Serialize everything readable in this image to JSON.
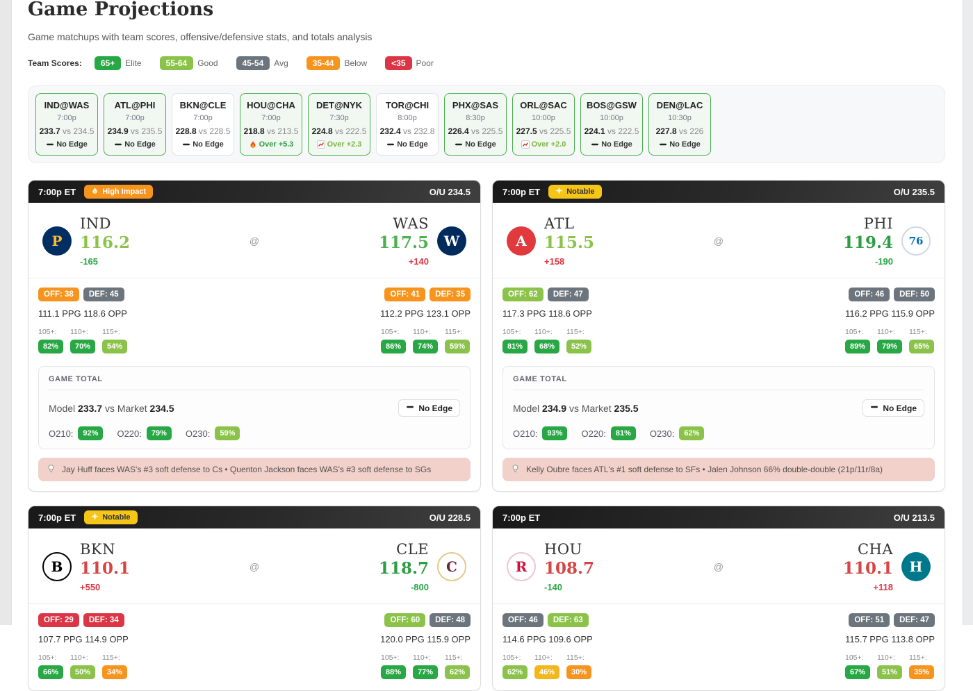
{
  "page": {
    "title": "Game Projections",
    "subtitle": "Game matchups with team scores, offensive/defensive stats, and totals analysis"
  },
  "shared": {
    "at_symbol": "@"
  },
  "legend": {
    "label": "Team Scores:",
    "items": [
      {
        "badge": "65+",
        "label": "Elite",
        "bg": "#28a745"
      },
      {
        "badge": "55-64",
        "label": "Good",
        "bg": "#8bc34a"
      },
      {
        "badge": "45-54",
        "label": "Avg",
        "bg": "#6c757d"
      },
      {
        "badge": "35-44",
        "label": "Below",
        "bg": "#f7941e"
      },
      {
        "badge": "<35",
        "label": "Poor",
        "bg": "#dc3545"
      }
    ]
  },
  "schedule_strip": [
    {
      "matchup": "IND@WAS",
      "time": "7:00p",
      "model": "233.7",
      "vs_market": "vs 234.5",
      "edge_icon": "dash-icon",
      "edge_text": "No Edge",
      "edge_color": "#333333",
      "highlight": true
    },
    {
      "matchup": "ATL@PHI",
      "time": "7:00p",
      "model": "234.9",
      "vs_market": "vs 235.5",
      "edge_icon": "dash-icon",
      "edge_text": "No Edge",
      "edge_color": "#333333",
      "highlight": true
    },
    {
      "matchup": "BKN@CLE",
      "time": "7:00p",
      "model": "228.8",
      "vs_market": "vs 228.5",
      "edge_icon": "dash-icon",
      "edge_text": "No Edge",
      "edge_color": "#333333",
      "highlight": false
    },
    {
      "matchup": "HOU@CHA",
      "time": "7:00p",
      "model": "218.8",
      "vs_market": "vs 213.5",
      "edge_icon": "fire-icon",
      "edge_text": "Over +5.3",
      "edge_color": "#2e9e44",
      "highlight": true
    },
    {
      "matchup": "DET@NYK",
      "time": "7:30p",
      "model": "224.8",
      "vs_market": "vs 222.5",
      "edge_icon": "chart-icon",
      "edge_text": "Over +2.3",
      "edge_color": "#7cb342",
      "highlight": true
    },
    {
      "matchup": "TOR@CHI",
      "time": "8:00p",
      "model": "232.4",
      "vs_market": "vs 232.8",
      "edge_icon": "dash-icon",
      "edge_text": "No Edge",
      "edge_color": "#333333",
      "highlight": false
    },
    {
      "matchup": "PHX@SAS",
      "time": "8:30p",
      "model": "226.4",
      "vs_market": "vs 225.5",
      "edge_icon": "dash-icon",
      "edge_text": "No Edge",
      "edge_color": "#333333",
      "highlight": true
    },
    {
      "matchup": "ORL@SAC",
      "time": "10:00p",
      "model": "227.5",
      "vs_market": "vs 225.5",
      "edge_icon": "chart-icon",
      "edge_text": "Over +2.0",
      "edge_color": "#7cb342",
      "highlight": true
    },
    {
      "matchup": "BOS@GSW",
      "time": "10:00p",
      "model": "224.1",
      "vs_market": "vs 222.5",
      "edge_icon": "dash-icon",
      "edge_text": "No Edge",
      "edge_color": "#333333",
      "highlight": true
    },
    {
      "matchup": "DEN@LAC",
      "time": "10:30p",
      "model": "227.8",
      "vs_market": "vs 226",
      "edge_icon": "dash-icon",
      "edge_text": "No Edge",
      "edge_color": "#333333",
      "highlight": true
    }
  ],
  "games": [
    {
      "time": "7:00p ET",
      "badge": {
        "label": "High Impact",
        "icon": "flame-icon",
        "bg": "#f7941e",
        "fg": "#ffffff"
      },
      "ou": "O/U 234.5",
      "away": {
        "abbr": "IND",
        "score": "116.2",
        "score_color": "#8bc34a",
        "odds": "-165",
        "odds_color": "#28a745",
        "logo": {
          "name": "pacers-logo",
          "text": "P",
          "bg": "#002d62",
          "fg": "#fdbb30"
        },
        "off": {
          "label": "OFF: 38",
          "bg": "#f7941e"
        },
        "def": {
          "label": "DEF: 45",
          "bg": "#6c757d"
        },
        "ppg": "111.1 PPG 118.6 OPP",
        "thresholds": [
          {
            "label": "105+:",
            "value": "82%",
            "bg": "#28a745"
          },
          {
            "label": "110+:",
            "value": "70%",
            "bg": "#28a745"
          },
          {
            "label": "115+:",
            "value": "54%",
            "bg": "#8bc34a"
          }
        ]
      },
      "home": {
        "abbr": "WAS",
        "score": "117.5",
        "score_color": "#4caf50",
        "odds": "+140",
        "odds_color": "#dc3545",
        "logo": {
          "name": "wizards-logo",
          "text": "W",
          "bg": "#002b5c",
          "fg": "#ffffff"
        },
        "off": {
          "label": "OFF: 41",
          "bg": "#f7941e"
        },
        "def": {
          "label": "DEF: 35",
          "bg": "#f7941e"
        },
        "ppg": "112.2 PPG 123.1 OPP",
        "thresholds": [
          {
            "label": "105+:",
            "value": "86%",
            "bg": "#28a745"
          },
          {
            "label": "110+:",
            "value": "74%",
            "bg": "#28a745"
          },
          {
            "label": "115+:",
            "value": "59%",
            "bg": "#8bc34a"
          }
        ]
      },
      "total": {
        "heading": "GAME TOTAL",
        "model_label": "Model",
        "model": "233.7",
        "vs_label": "vs Market",
        "market": "234.5",
        "edge": "No Edge",
        "overs": [
          {
            "label": "O210:",
            "value": "92%",
            "bg": "#28a745"
          },
          {
            "label": "O220:",
            "value": "79%",
            "bg": "#28a745"
          },
          {
            "label": "O230:",
            "value": "59%",
            "bg": "#8bc34a"
          }
        ]
      },
      "note": "Jay Huff faces WAS's #3 soft defense to Cs • Quenton Jackson faces WAS's #3 soft defense to SGs"
    },
    {
      "time": "7:00p ET",
      "badge": {
        "label": "Notable",
        "icon": "sparkle-icon",
        "bg": "#f5c518",
        "fg": "#333333"
      },
      "ou": "O/U 235.5",
      "away": {
        "abbr": "ATL",
        "score": "115.5",
        "score_color": "#8bc34a",
        "odds": "+158",
        "odds_color": "#dc3545",
        "logo": {
          "name": "hawks-logo",
          "text": "A",
          "bg": "#e03a3e",
          "fg": "#ffffff"
        },
        "off": {
          "label": "OFF: 62",
          "bg": "#8bc34a"
        },
        "def": {
          "label": "DEF: 47",
          "bg": "#6c757d"
        },
        "ppg": "117.3 PPG 118.6 OPP",
        "thresholds": [
          {
            "label": "105+:",
            "value": "81%",
            "bg": "#28a745"
          },
          {
            "label": "110+:",
            "value": "68%",
            "bg": "#28a745"
          },
          {
            "label": "115+:",
            "value": "52%",
            "bg": "#8bc34a"
          }
        ]
      },
      "home": {
        "abbr": "PHI",
        "score": "119.4",
        "score_color": "#2e9e44",
        "odds": "-190",
        "odds_color": "#28a745",
        "logo": {
          "name": "sixers-logo",
          "text": "76",
          "bg": "#ffffff",
          "fg": "#006bb6",
          "border": "#cfd8e3"
        },
        "off": {
          "label": "OFF: 46",
          "bg": "#6c757d"
        },
        "def": {
          "label": "DEF: 50",
          "bg": "#6c757d"
        },
        "ppg": "116.2 PPG 115.9 OPP",
        "thresholds": [
          {
            "label": "105+:",
            "value": "89%",
            "bg": "#28a745"
          },
          {
            "label": "110+:",
            "value": "79%",
            "bg": "#28a745"
          },
          {
            "label": "115+:",
            "value": "65%",
            "bg": "#8bc34a"
          }
        ]
      },
      "total": {
        "heading": "GAME TOTAL",
        "model_label": "Model",
        "model": "234.9",
        "vs_label": "vs Market",
        "market": "235.5",
        "edge": "No Edge",
        "overs": [
          {
            "label": "O210:",
            "value": "93%",
            "bg": "#28a745"
          },
          {
            "label": "O220:",
            "value": "81%",
            "bg": "#28a745"
          },
          {
            "label": "O230:",
            "value": "62%",
            "bg": "#8bc34a"
          }
        ]
      },
      "note": "Kelly Oubre faces ATL's #1 soft defense to SFs • Jalen Johnson 66% double-double (21p/11r/8a)"
    },
    {
      "time": "7:00p ET",
      "badge": {
        "label": "Notable",
        "icon": "sparkle-icon",
        "bg": "#f5c518",
        "fg": "#333333"
      },
      "ou": "O/U 228.5",
      "away": {
        "abbr": "BKN",
        "score": "110.1",
        "score_color": "#d64545",
        "odds": "+550",
        "odds_color": "#dc3545",
        "logo": {
          "name": "nets-logo",
          "text": "B",
          "bg": "#ffffff",
          "fg": "#000000",
          "border": "#000000"
        },
        "off": {
          "label": "OFF: 29",
          "bg": "#dc3545"
        },
        "def": {
          "label": "DEF: 34",
          "bg": "#dc3545"
        },
        "ppg": "107.7 PPG 114.9 OPP",
        "thresholds": [
          {
            "label": "105+:",
            "value": "66%",
            "bg": "#28a745"
          },
          {
            "label": "110+:",
            "value": "50%",
            "bg": "#8bc34a"
          },
          {
            "label": "115+:",
            "value": "34%",
            "bg": "#f7941e"
          }
        ]
      },
      "home": {
        "abbr": "CLE",
        "score": "118.7",
        "score_color": "#2e9e44",
        "odds": "-800",
        "odds_color": "#28a745",
        "logo": {
          "name": "cavaliers-logo",
          "text": "C",
          "bg": "#ffffff",
          "fg": "#6f263d",
          "border": "#e6c78a"
        },
        "off": {
          "label": "OFF: 60",
          "bg": "#8bc34a"
        },
        "def": {
          "label": "DEF: 48",
          "bg": "#6c757d"
        },
        "ppg": "120.0 PPG 115.9 OPP",
        "thresholds": [
          {
            "label": "105+:",
            "value": "88%",
            "bg": "#28a745"
          },
          {
            "label": "110+:",
            "value": "77%",
            "bg": "#28a745"
          },
          {
            "label": "115+:",
            "value": "62%",
            "bg": "#8bc34a"
          }
        ]
      }
    },
    {
      "time": "7:00p ET",
      "ou": "O/U 213.5",
      "away": {
        "abbr": "HOU",
        "score": "108.7",
        "score_color": "#d64545",
        "odds": "-140",
        "odds_color": "#28a745",
        "logo": {
          "name": "rockets-logo",
          "text": "R",
          "bg": "#ffffff",
          "fg": "#ce1141",
          "border": "#f0c4cd"
        },
        "off": {
          "label": "OFF: 46",
          "bg": "#6c757d"
        },
        "def": {
          "label": "DEF: 63",
          "bg": "#8bc34a"
        },
        "ppg": "114.6 PPG 109.6 OPP",
        "thresholds": [
          {
            "label": "105+:",
            "value": "62%",
            "bg": "#8bc34a"
          },
          {
            "label": "110+:",
            "value": "46%",
            "bg": "#f2b71c"
          },
          {
            "label": "115+:",
            "value": "30%",
            "bg": "#f7941e"
          }
        ]
      },
      "home": {
        "abbr": "CHA",
        "score": "110.1",
        "score_color": "#d64545",
        "odds": "+118",
        "odds_color": "#dc3545",
        "logo": {
          "name": "hornets-logo",
          "text": "H",
          "bg": "#00788c",
          "fg": "#ffffff"
        },
        "off": {
          "label": "OFF: 51",
          "bg": "#6c757d"
        },
        "def": {
          "label": "DEF: 47",
          "bg": "#6c757d"
        },
        "ppg": "115.7 PPG 113.8 OPP",
        "thresholds": [
          {
            "label": "105+:",
            "value": "67%",
            "bg": "#28a745"
          },
          {
            "label": "110+:",
            "value": "51%",
            "bg": "#8bc34a"
          },
          {
            "label": "115+:",
            "value": "35%",
            "bg": "#f7941e"
          }
        ]
      }
    }
  ]
}
